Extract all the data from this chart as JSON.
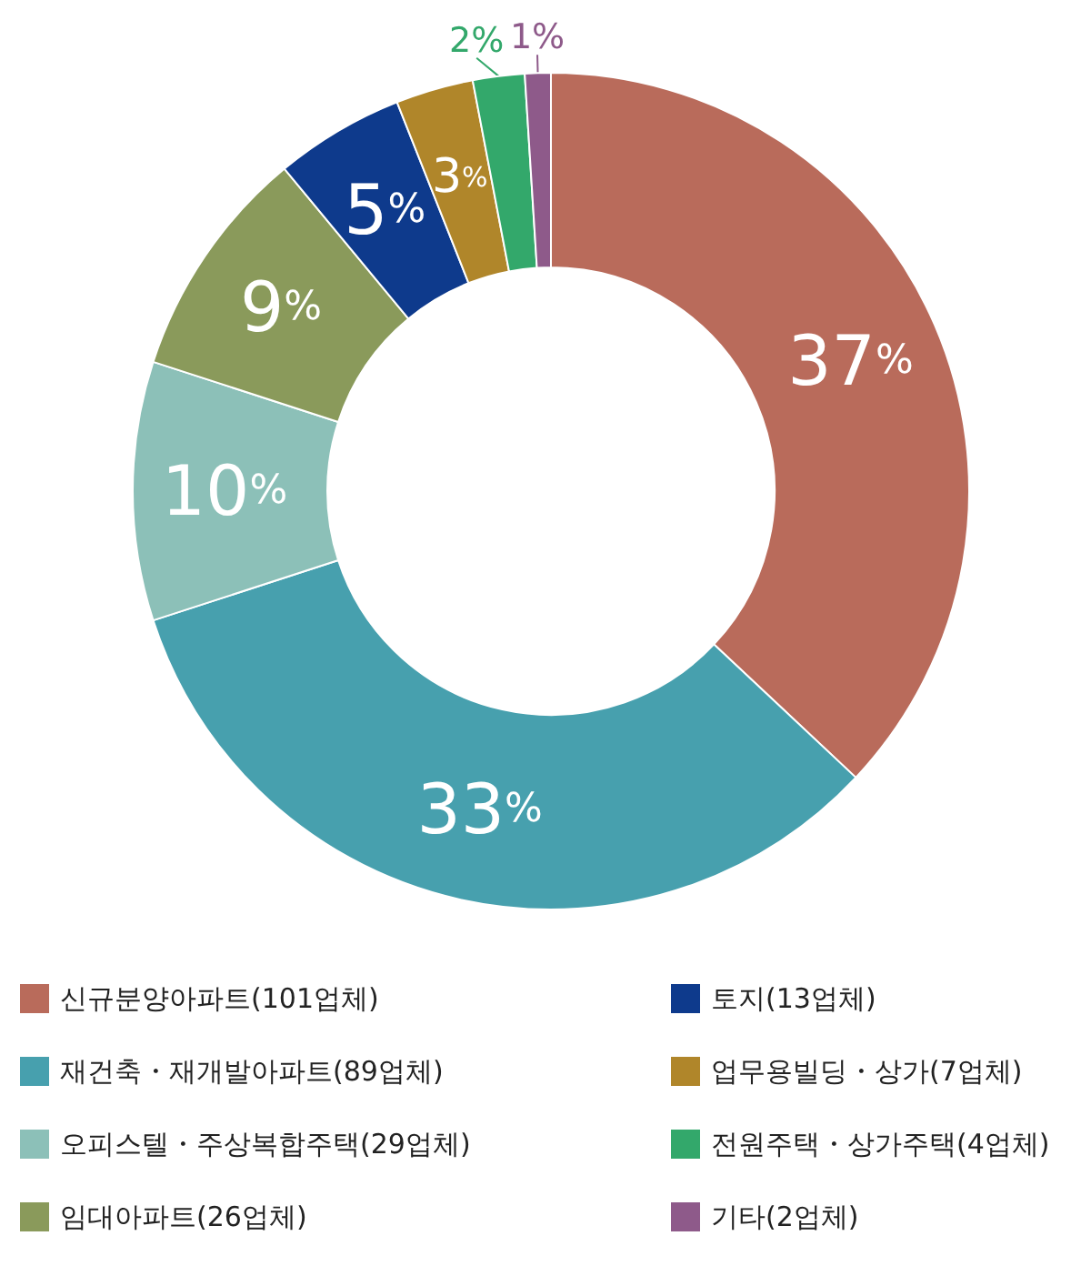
{
  "chart_data": {
    "type": "donut",
    "categories": [
      "신규분양아파트(101업체)",
      "재건축・재개발아파트(89업체)",
      "오피스텔・주상복합주택(29업체)",
      "임대아파트(26업체)",
      "토지(13업체)",
      "업무용빌딩・상가(7업체)",
      "전원주택・상가주택(4업체)",
      "기타(2업체)"
    ],
    "values": [
      37,
      33,
      10,
      9,
      5,
      3,
      2,
      1
    ],
    "value_labels": [
      "37%",
      "33%",
      "10%",
      "9%",
      "5%",
      "3%",
      "2%",
      "1%"
    ],
    "colors": [
      "#b96b5b",
      "#47a0ae",
      "#8cc0b8",
      "#8a9a5b",
      "#0e3a8c",
      "#b0862a",
      "#33a86b",
      "#8e5a8a"
    ],
    "legend": "bottom"
  }
}
